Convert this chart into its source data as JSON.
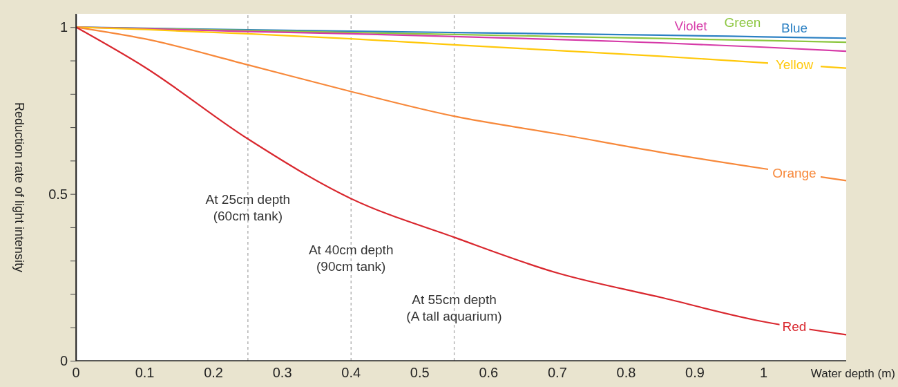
{
  "chart_data": {
    "type": "line",
    "ylabel": "Reduction rate of light intensity",
    "xlabel": "Water depth (m)",
    "x": [
      0,
      0.1,
      0.25,
      0.4,
      0.55,
      0.7,
      0.85,
      1,
      1.12
    ],
    "series": [
      {
        "name": "Blue",
        "color": "#2b80c3",
        "values": [
          1,
          0.997,
          0.992,
          0.988,
          0.984,
          0.98,
          0.976,
          0.971,
          0.967
        ]
      },
      {
        "name": "Green",
        "color": "#8cc63f",
        "values": [
          1,
          0.996,
          0.99,
          0.984,
          0.978,
          0.972,
          0.966,
          0.96,
          0.955
        ]
      },
      {
        "name": "Violet",
        "color": "#d63aa8",
        "values": [
          1,
          0.995,
          0.987,
          0.98,
          0.972,
          0.963,
          0.953,
          0.94,
          0.928
        ]
      },
      {
        "name": "Yellow",
        "color": "#ffc80a",
        "values": [
          1,
          0.993,
          0.98,
          0.965,
          0.947,
          0.93,
          0.913,
          0.893,
          0.877
        ]
      },
      {
        "name": "Orange",
        "color": "#f7883a",
        "values": [
          1,
          0.965,
          0.887,
          0.807,
          0.733,
          0.68,
          0.625,
          0.576,
          0.54
        ]
      },
      {
        "name": "Red",
        "color": "#d9272e",
        "values": [
          1,
          0.88,
          0.665,
          0.486,
          0.37,
          0.263,
          0.19,
          0.117,
          0.078
        ]
      }
    ],
    "xlim": [
      0,
      1.12
    ],
    "ylim": [
      0,
      1.04
    ],
    "xticks": [
      0,
      0.1,
      0.2,
      0.3,
      0.4,
      0.5,
      0.6,
      0.7,
      0.8,
      0.9,
      1
    ],
    "yticks": [
      0,
      {
        "value": 0.1,
        "label": null
      },
      {
        "value": 0.2,
        "label": null
      },
      {
        "value": 0.3,
        "label": null
      },
      {
        "value": 0.4,
        "label": null
      },
      0.5,
      {
        "value": 0.6,
        "label": null
      },
      {
        "value": 0.7,
        "label": null
      },
      {
        "value": 0.8,
        "label": null
      },
      {
        "value": 0.9,
        "label": null
      },
      1
    ],
    "ref_lines": [
      {
        "axis": "x",
        "value": 0.25,
        "color": "#aaaaaa",
        "line_style": "dashed"
      },
      {
        "axis": "x",
        "value": 0.4,
        "color": "#aaaaaa",
        "line_style": "dashed"
      },
      {
        "axis": "x",
        "value": 0.55,
        "color": "#aaaaaa",
        "line_style": "dashed"
      }
    ],
    "annotations": [
      {
        "text": "At 25cm depth\n(60cm tank)",
        "x": 0.25,
        "y": 0.47
      },
      {
        "text": "At 40cm depth\n(90cm tank)",
        "x": 0.4,
        "y": 0.32
      },
      {
        "text": "At 55cm depth\n(A tall aquarium)",
        "x": 0.55,
        "y": 0.17
      }
    ],
    "legend": false,
    "grid": false,
    "marker": "none",
    "line_style": "solid"
  }
}
